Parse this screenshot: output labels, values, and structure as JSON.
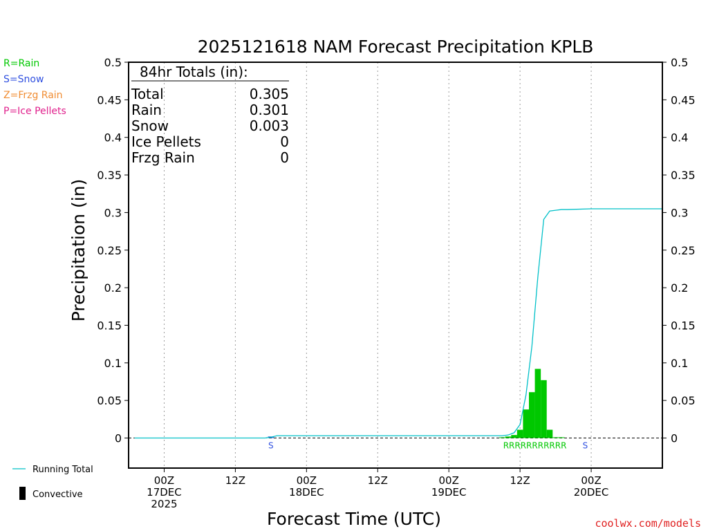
{
  "chart_data": {
    "type": "bar",
    "title": "2025121618 NAM Forecast Precipitation KPLB",
    "ylabel": "Precipitation (in)",
    "xlabel": "Forecast Time (UTC)",
    "ylim": [
      -0.04,
      0.5
    ],
    "xlim_hours": [
      -6,
      84
    ],
    "y_ticks": [
      0,
      0.05,
      0.1,
      0.15,
      0.2,
      0.25,
      0.3,
      0.35,
      0.4,
      0.45,
      0.5
    ],
    "y_tick_labels": [
      "0",
      "0.05",
      "0.1",
      "0.15",
      "0.2",
      "0.25",
      "0.3",
      "0.35",
      "0.4",
      "0.45",
      "0.5"
    ],
    "x_ticks": [
      {
        "hour": 0,
        "lines": [
          "00Z",
          "17DEC",
          "2025"
        ]
      },
      {
        "hour": 12,
        "lines": [
          "12Z"
        ]
      },
      {
        "hour": 24,
        "lines": [
          "00Z",
          "18DEC"
        ]
      },
      {
        "hour": 36,
        "lines": [
          "12Z"
        ]
      },
      {
        "hour": 48,
        "lines": [
          "00Z",
          "19DEC"
        ]
      },
      {
        "hour": 60,
        "lines": [
          "12Z"
        ]
      },
      {
        "hour": 72,
        "lines": [
          "00Z",
          "20DEC"
        ]
      }
    ],
    "x_tick_hours": [
      0,
      12,
      24,
      36,
      48,
      60,
      72
    ],
    "bar_width_hours": 1,
    "bars": [
      {
        "hour": 18,
        "value": 0.002,
        "color": "#3050e0"
      },
      {
        "hour": 57,
        "value": 0.001,
        "color": "#00c800"
      },
      {
        "hour": 58,
        "value": 0.002,
        "color": "#00c800"
      },
      {
        "hour": 59,
        "value": 0.004,
        "color": "#00c800"
      },
      {
        "hour": 60,
        "value": 0.011,
        "color": "#00c800"
      },
      {
        "hour": 61,
        "value": 0.038,
        "color": "#00c800"
      },
      {
        "hour": 62,
        "value": 0.061,
        "color": "#00c800"
      },
      {
        "hour": 63,
        "value": 0.092,
        "color": "#00c800"
      },
      {
        "hour": 64,
        "value": 0.077,
        "color": "#00c800"
      },
      {
        "hour": 65,
        "value": 0.011,
        "color": "#00c800"
      },
      {
        "hour": 66,
        "value": 0.001,
        "color": "#00c800"
      },
      {
        "hour": 67,
        "value": 0.001,
        "color": "#00c800"
      }
    ],
    "running_total": {
      "name": "Running Total",
      "color": "#00c0c8",
      "hours": [
        -5,
        17,
        18,
        19,
        57,
        58,
        59,
        60,
        61,
        62,
        63,
        64,
        65,
        66,
        67,
        68,
        72,
        84
      ],
      "values": [
        0,
        0,
        0.001,
        0.003,
        0.003,
        0.004,
        0.007,
        0.018,
        0.057,
        0.122,
        0.214,
        0.291,
        0.302,
        0.303,
        0.304,
        0.304,
        0.305,
        0.305
      ]
    },
    "ptype_labels": [
      {
        "text": "S",
        "hour": 18,
        "color": "#3050e0"
      },
      {
        "text": "RRRRRRRRRRR",
        "hour": 62.5,
        "color": "#00c800"
      },
      {
        "text": "S",
        "hour": 71,
        "color": "#3050e0"
      }
    ],
    "totals_box": {
      "heading": "84hr Totals (in):",
      "rows": [
        {
          "label": "Total",
          "value": "0.305"
        },
        {
          "label": "Rain",
          "value": "0.301"
        },
        {
          "label": "Snow",
          "value": "0.003"
        },
        {
          "label": "Ice Pellets",
          "value": "0"
        },
        {
          "label": "Frzg Rain",
          "value": "0"
        }
      ]
    },
    "ptype_legend": [
      {
        "text": "R=Rain",
        "color": "#00c800"
      },
      {
        "text": "S=Snow",
        "color": "#3050e0"
      },
      {
        "text": "Z=Frzg Rain",
        "color": "#f08c32"
      },
      {
        "text": "P=Ice Pellets",
        "color": "#e0208c"
      }
    ],
    "series_legend": [
      {
        "text": "Running Total",
        "color": "#00c0c8",
        "kind": "line"
      },
      {
        "text": "Convective",
        "color": "#000000",
        "kind": "bar"
      }
    ],
    "credit": "coolwx.com/models",
    "grid": true
  }
}
